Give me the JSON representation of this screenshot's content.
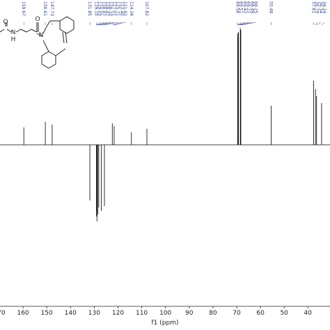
{
  "chart_data": {
    "type": "nmr",
    "x_label": "f1 (ppm)",
    "xlim": [
      169.7,
      30.7
    ],
    "xticks": [
      {
        "value": 170,
        "label": "170"
      },
      160,
      150,
      140,
      130,
      120,
      110,
      100,
      90,
      80,
      70,
      60,
      50,
      40
    ],
    "ylim": [
      -232,
      208
    ],
    "color": "#000000",
    "label_color": "#2b3c8c",
    "structure_atoms": [
      "O",
      "N",
      "H",
      "N",
      "O"
    ],
    "peaks": {
      "labels": [
        "159.67",
        "150.61",
        "147.73",
        "131.85",
        "129.10",
        "129.05",
        "128.87",
        "128.47",
        "128.10",
        "127.01",
        "125.71",
        "122.40",
        "121.62",
        "114.34",
        "107.82",
        "69.56",
        "69.51",
        "69.42",
        "69.27",
        "68.49",
        "68.25",
        "55.48",
        "37.61",
        "36.79",
        "36.34",
        "34.24"
      ],
      "x": [
        159.67,
        150.61,
        147.73,
        131.85,
        129.1,
        129.05,
        128.87,
        128.47,
        128.1,
        127.01,
        125.71,
        122.4,
        121.62,
        114.34,
        107.82,
        69.56,
        69.51,
        69.42,
        69.27,
        68.49,
        68.25,
        55.48,
        37.61,
        36.79,
        36.34,
        34.24
      ],
      "values": [
        25,
        33,
        29,
        -80,
        -103,
        -95,
        -110,
        -100,
        -90,
        -95,
        -88,
        31,
        27,
        18,
        23,
        160,
        155,
        150,
        162,
        168,
        165,
        56,
        92,
        80,
        70,
        60
      ]
    }
  }
}
